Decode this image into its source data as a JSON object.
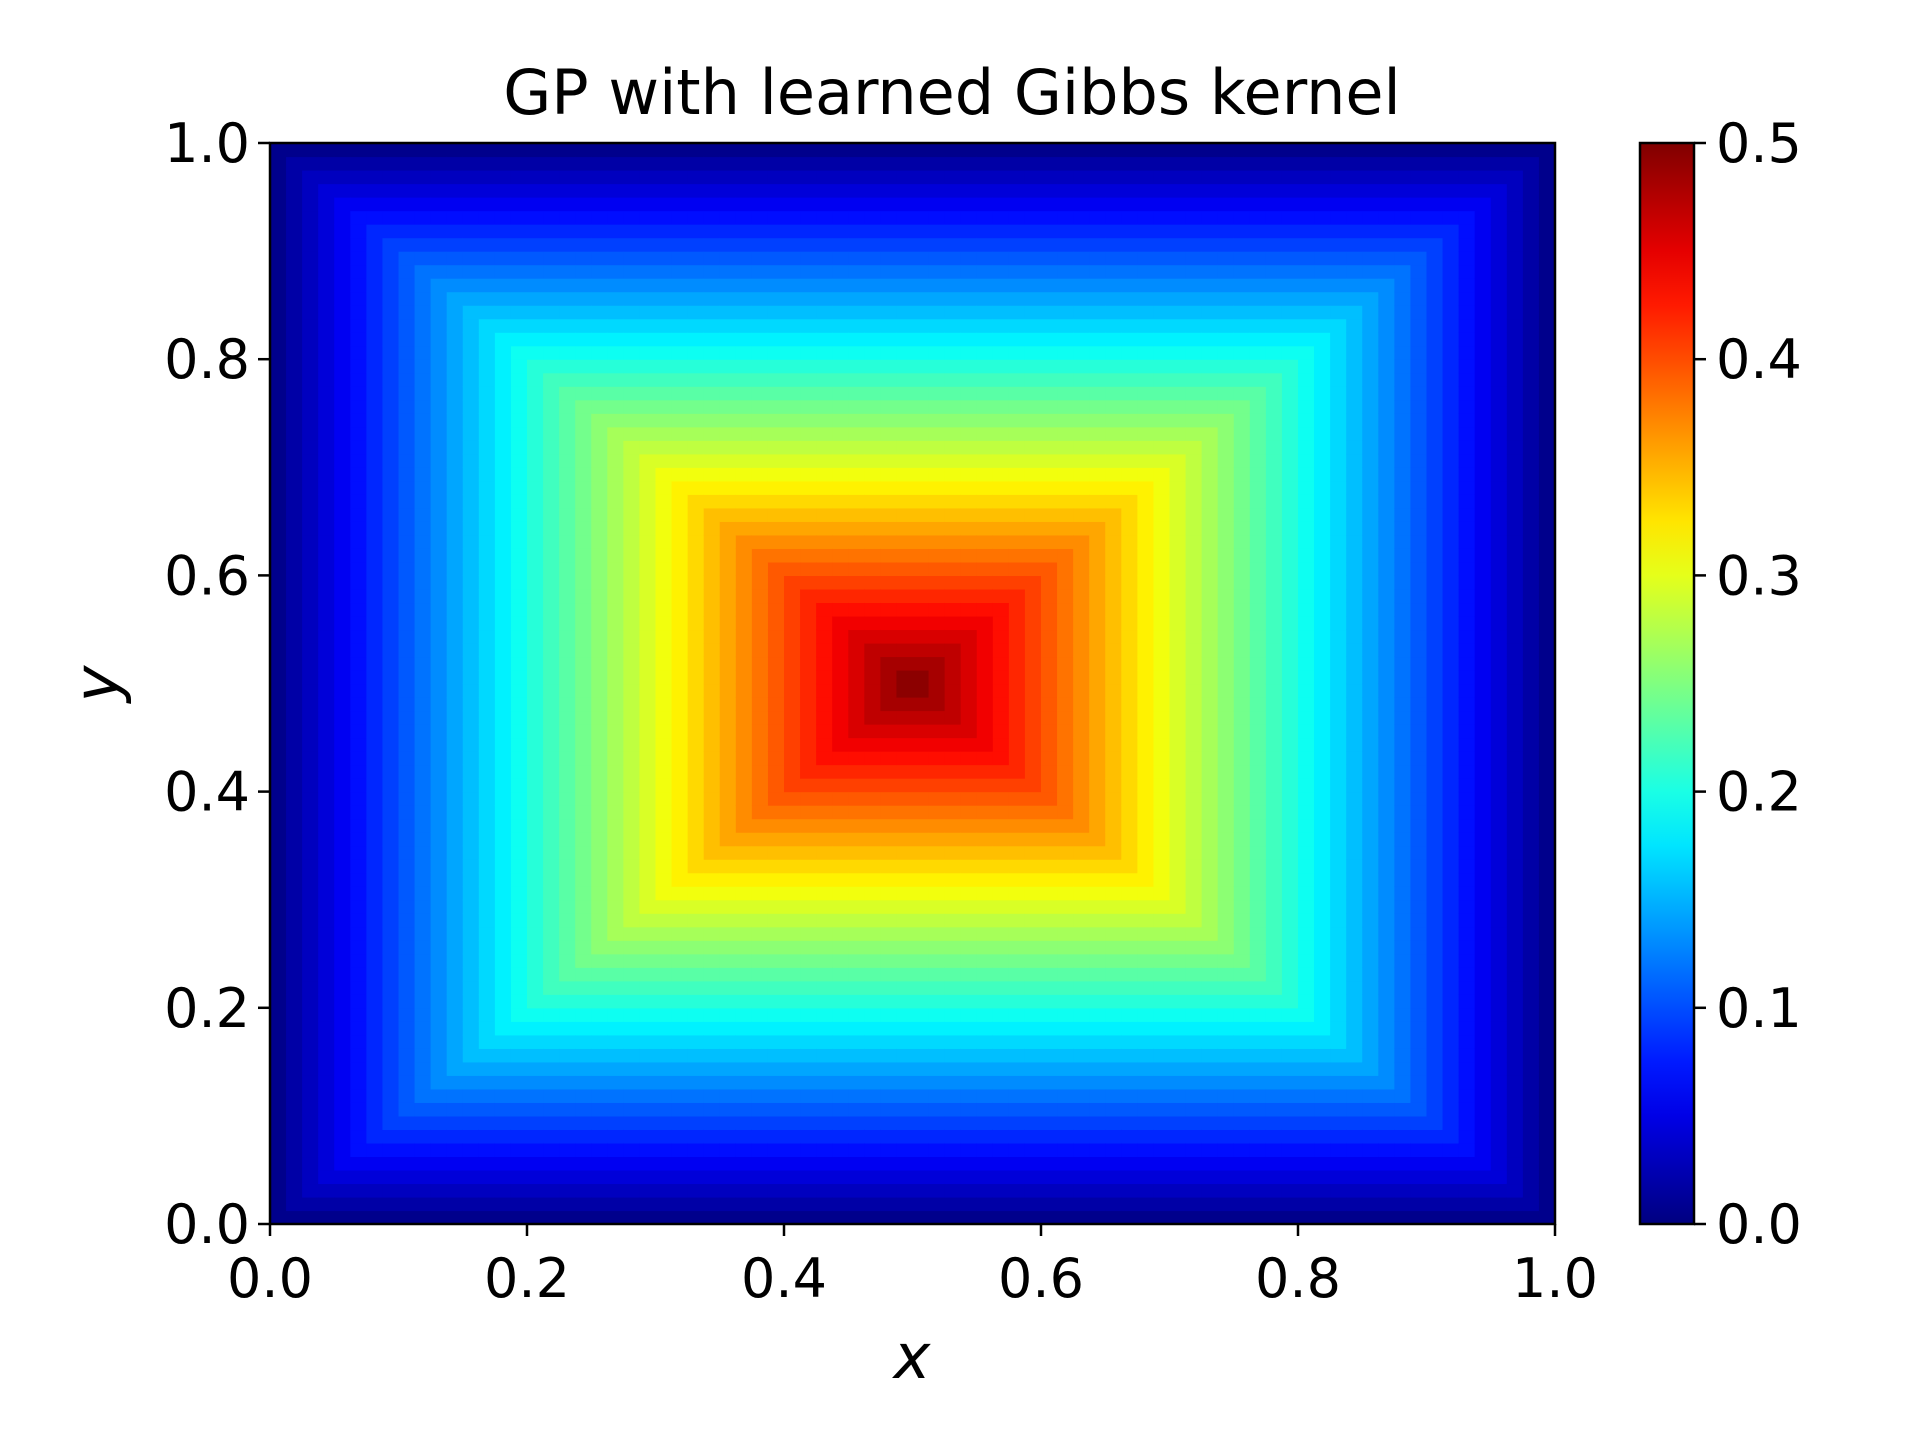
{
  "chart_data": {
    "type": "heatmap",
    "title": "GP with learned Gibbs kernel",
    "xlabel": "x",
    "ylabel": "y",
    "xlim": [
      0.0,
      1.0
    ],
    "ylim": [
      0.0,
      1.0
    ],
    "x_ticks": [
      "0.0",
      "0.2",
      "0.4",
      "0.6",
      "0.8",
      "1.0"
    ],
    "y_ticks": [
      "0.0",
      "0.2",
      "0.4",
      "0.6",
      "0.8",
      "1.0"
    ],
    "colormap": "jet",
    "color_range": [
      0.0,
      0.5
    ],
    "colorbar_ticks": [
      "0.0",
      "0.1",
      "0.2",
      "0.3",
      "0.4",
      "0.5"
    ],
    "grid": false,
    "field": "value = 0.5 - max(|x - 0.5|, |y - 0.5|)",
    "grid_resolution": 80,
    "center_value": 0.5,
    "edge_value": 0.0
  }
}
